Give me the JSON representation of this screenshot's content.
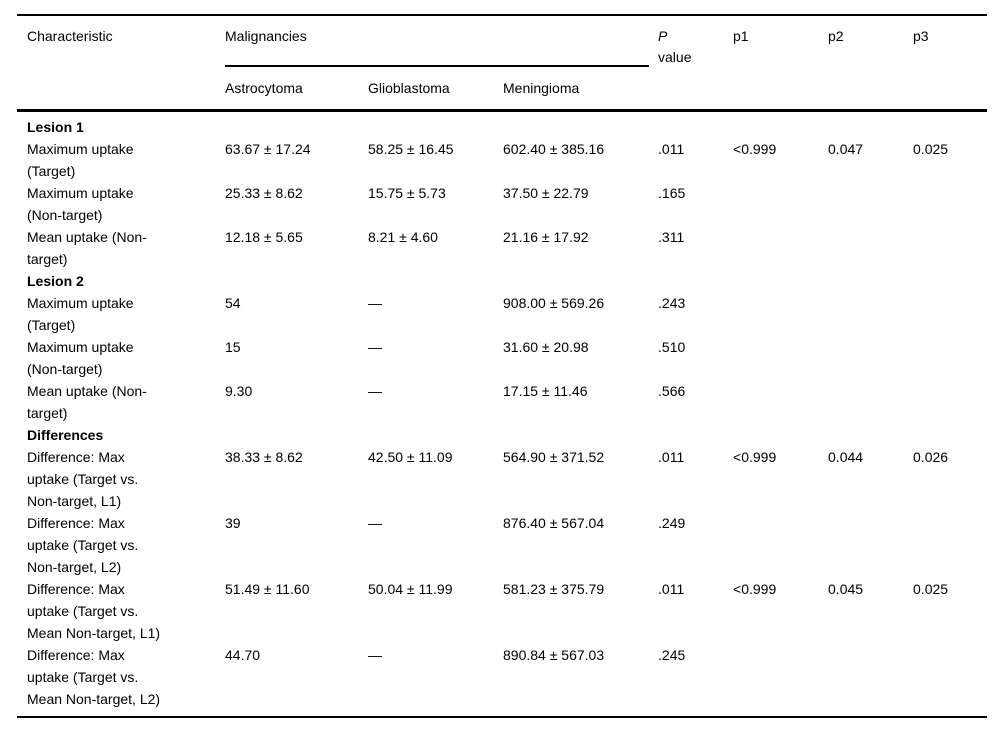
{
  "table": {
    "headers": {
      "characteristic": "Characteristic",
      "spanner": "Malignancies",
      "columns": [
        "Astrocytoma",
        "Glioblastoma",
        "Meningioma"
      ],
      "p_line1": "P",
      "p_line2": "value",
      "p1": "p1",
      "p2": "p2",
      "p3": "p3"
    },
    "rows": [
      {
        "section": "Lesion 1"
      },
      {
        "label": "Maximum uptake (Target)",
        "values": [
          "63.67 ± 17.24",
          "58.25 ± 16.45",
          "602.40 ± 385.16"
        ],
        "p": ".011",
        "p1": "<0.999",
        "p2": "0.047",
        "p3": "0.025"
      },
      {
        "label": "Maximum uptake (Non-target)",
        "values": [
          "25.33 ± 8.62",
          "15.75 ± 5.73",
          "37.50 ± 22.79"
        ],
        "p": ".165"
      },
      {
        "label": "Mean uptake (Non-target)",
        "values": [
          "12.18 ± 5.65",
          "8.21 ± 4.60",
          "21.16 ± 17.92"
        ],
        "p": ".311"
      },
      {
        "section": "Lesion 2"
      },
      {
        "label": "Maximum uptake (Target)",
        "values": [
          "54",
          "—",
          "908.00 ± 569.26"
        ],
        "p": ".243"
      },
      {
        "label": "Maximum uptake (Non-target)",
        "values": [
          "15",
          "—",
          "31.60 ± 20.98"
        ],
        "p": ".510"
      },
      {
        "label": "Mean uptake (Non-target)",
        "values": [
          "9.30",
          "—",
          "17.15 ± 11.46"
        ],
        "p": ".566"
      },
      {
        "section": "Differences"
      },
      {
        "label": "Difference: Max uptake (Target vs. Non-target, L1)",
        "values": [
          "38.33 ± 8.62",
          "42.50 ± 11.09",
          "564.90 ± 371.52"
        ],
        "p": ".011",
        "p1": "<0.999",
        "p2": "0.044",
        "p3": "0.026"
      },
      {
        "label": "Difference: Max uptake (Target vs. Non-target, L2)",
        "values": [
          "39",
          "—",
          "876.40 ± 567.04"
        ],
        "p": ".249"
      },
      {
        "label": "Difference: Max uptake (Target vs. Mean Non-target, L1)",
        "values": [
          "51.49 ± 11.60",
          "50.04 ± 11.99",
          "581.23 ± 375.79"
        ],
        "p": ".011",
        "p1": "<0.999",
        "p2": "0.045",
        "p3": "0.025"
      },
      {
        "label": "Difference: Max uptake (Target vs. Mean Non-target, L2)",
        "values": [
          "44.70",
          "—",
          "890.84 ± 567.03"
        ],
        "p": ".245"
      }
    ]
  }
}
